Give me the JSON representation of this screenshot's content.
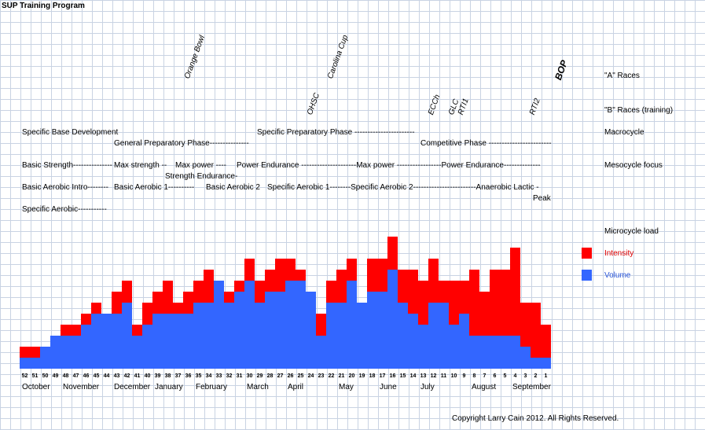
{
  "title": "SUP Training Program",
  "row_labels": {
    "a_races": "\"A\" Races",
    "b_races": "\"B\" Races (training)",
    "macrocycle": "Macrocycle",
    "mesocycle": "Mesocycle focus",
    "microcycle": "Microcycle load"
  },
  "a_races": [
    "Orange Bowl",
    "Carolina Cup",
    "BOP"
  ],
  "b_races": [
    "OHSC",
    "ECCh",
    "GLC",
    "RTI1",
    "RTI2"
  ],
  "macro": {
    "line1a": "Specific Base Development",
    "line1b": "Specific Preparatory Phase -----------------------",
    "line2a": "General Preparatory Phase---------------",
    "line2b": "Competitive Phase ------------------------"
  },
  "meso": {
    "m1": "Basic Strength---------------",
    "m2": "Max strength --",
    "m3": "Max power ----",
    "m4": "Power Endurance ---------------------Max power -----------------Power Endurance--------------",
    "m5": "Strength Endurance-",
    "a1": "Basic Aerobic Intro--------",
    "a2": "Basic Aerobic  1----------",
    "a3": "Basic Aerobic 2",
    "a4": "Specific Aerobic 1--------Specific Aerobic 2------------------------Anaerobic Lactic -",
    "a5": "Specific Aerobic-----------",
    "peak": "Peak"
  },
  "legend": {
    "intensity": "Intensity",
    "volume": "Volume"
  },
  "colors": {
    "intensity": "#ff0000",
    "volume": "#3366ff"
  },
  "copyright": "Copyright Larry Cain 2012. All Rights Reserved.",
  "chart_data": {
    "type": "bar",
    "stacked": true,
    "categories": [
      "52",
      "51",
      "50",
      "49",
      "48",
      "47",
      "46",
      "45",
      "44",
      "43",
      "42",
      "41",
      "40",
      "39",
      "38",
      "37",
      "36",
      "35",
      "34",
      "33",
      "32",
      "31",
      "30",
      "29",
      "28",
      "27",
      "26",
      "25",
      "24",
      "23",
      "22",
      "21",
      "20",
      "19",
      "18",
      "17",
      "16",
      "15",
      "14",
      "13",
      "12",
      "11",
      "10",
      "9",
      "8",
      "7",
      "6",
      "5",
      "4",
      "3",
      "2",
      "1"
    ],
    "months": [
      "October",
      "November",
      "December",
      "January",
      "February",
      "March",
      "April",
      "May",
      "June",
      "July",
      "August",
      "September"
    ],
    "series": [
      {
        "name": "Volume",
        "values": [
          1,
          1,
          2,
          3,
          3,
          3,
          4,
          5,
          5,
          5,
          6,
          3,
          4,
          5,
          5,
          5,
          5,
          6,
          6,
          8,
          6,
          7,
          8,
          6,
          7,
          7,
          8,
          8,
          7,
          3,
          6,
          6,
          8,
          6,
          7,
          7,
          9,
          6,
          5,
          4,
          6,
          6,
          4,
          5,
          3,
          3,
          3,
          3,
          3,
          2,
          1,
          1
        ]
      },
      {
        "name": "Intensity",
        "values": [
          1,
          1,
          0,
          0,
          1,
          1,
          1,
          1,
          0,
          2,
          2,
          1,
          2,
          2,
          3,
          1,
          2,
          2,
          3,
          0,
          1,
          1,
          2,
          2,
          2,
          3,
          2,
          1,
          0,
          2,
          2,
          3,
          2,
          0,
          3,
          3,
          3,
          3,
          4,
          4,
          4,
          2,
          4,
          3,
          6,
          4,
          6,
          6,
          8,
          4,
          5,
          3
        ]
      }
    ],
    "xlabel": "",
    "ylabel": "",
    "ylim": [
      0,
      12
    ],
    "grid": true,
    "legend": "right"
  }
}
